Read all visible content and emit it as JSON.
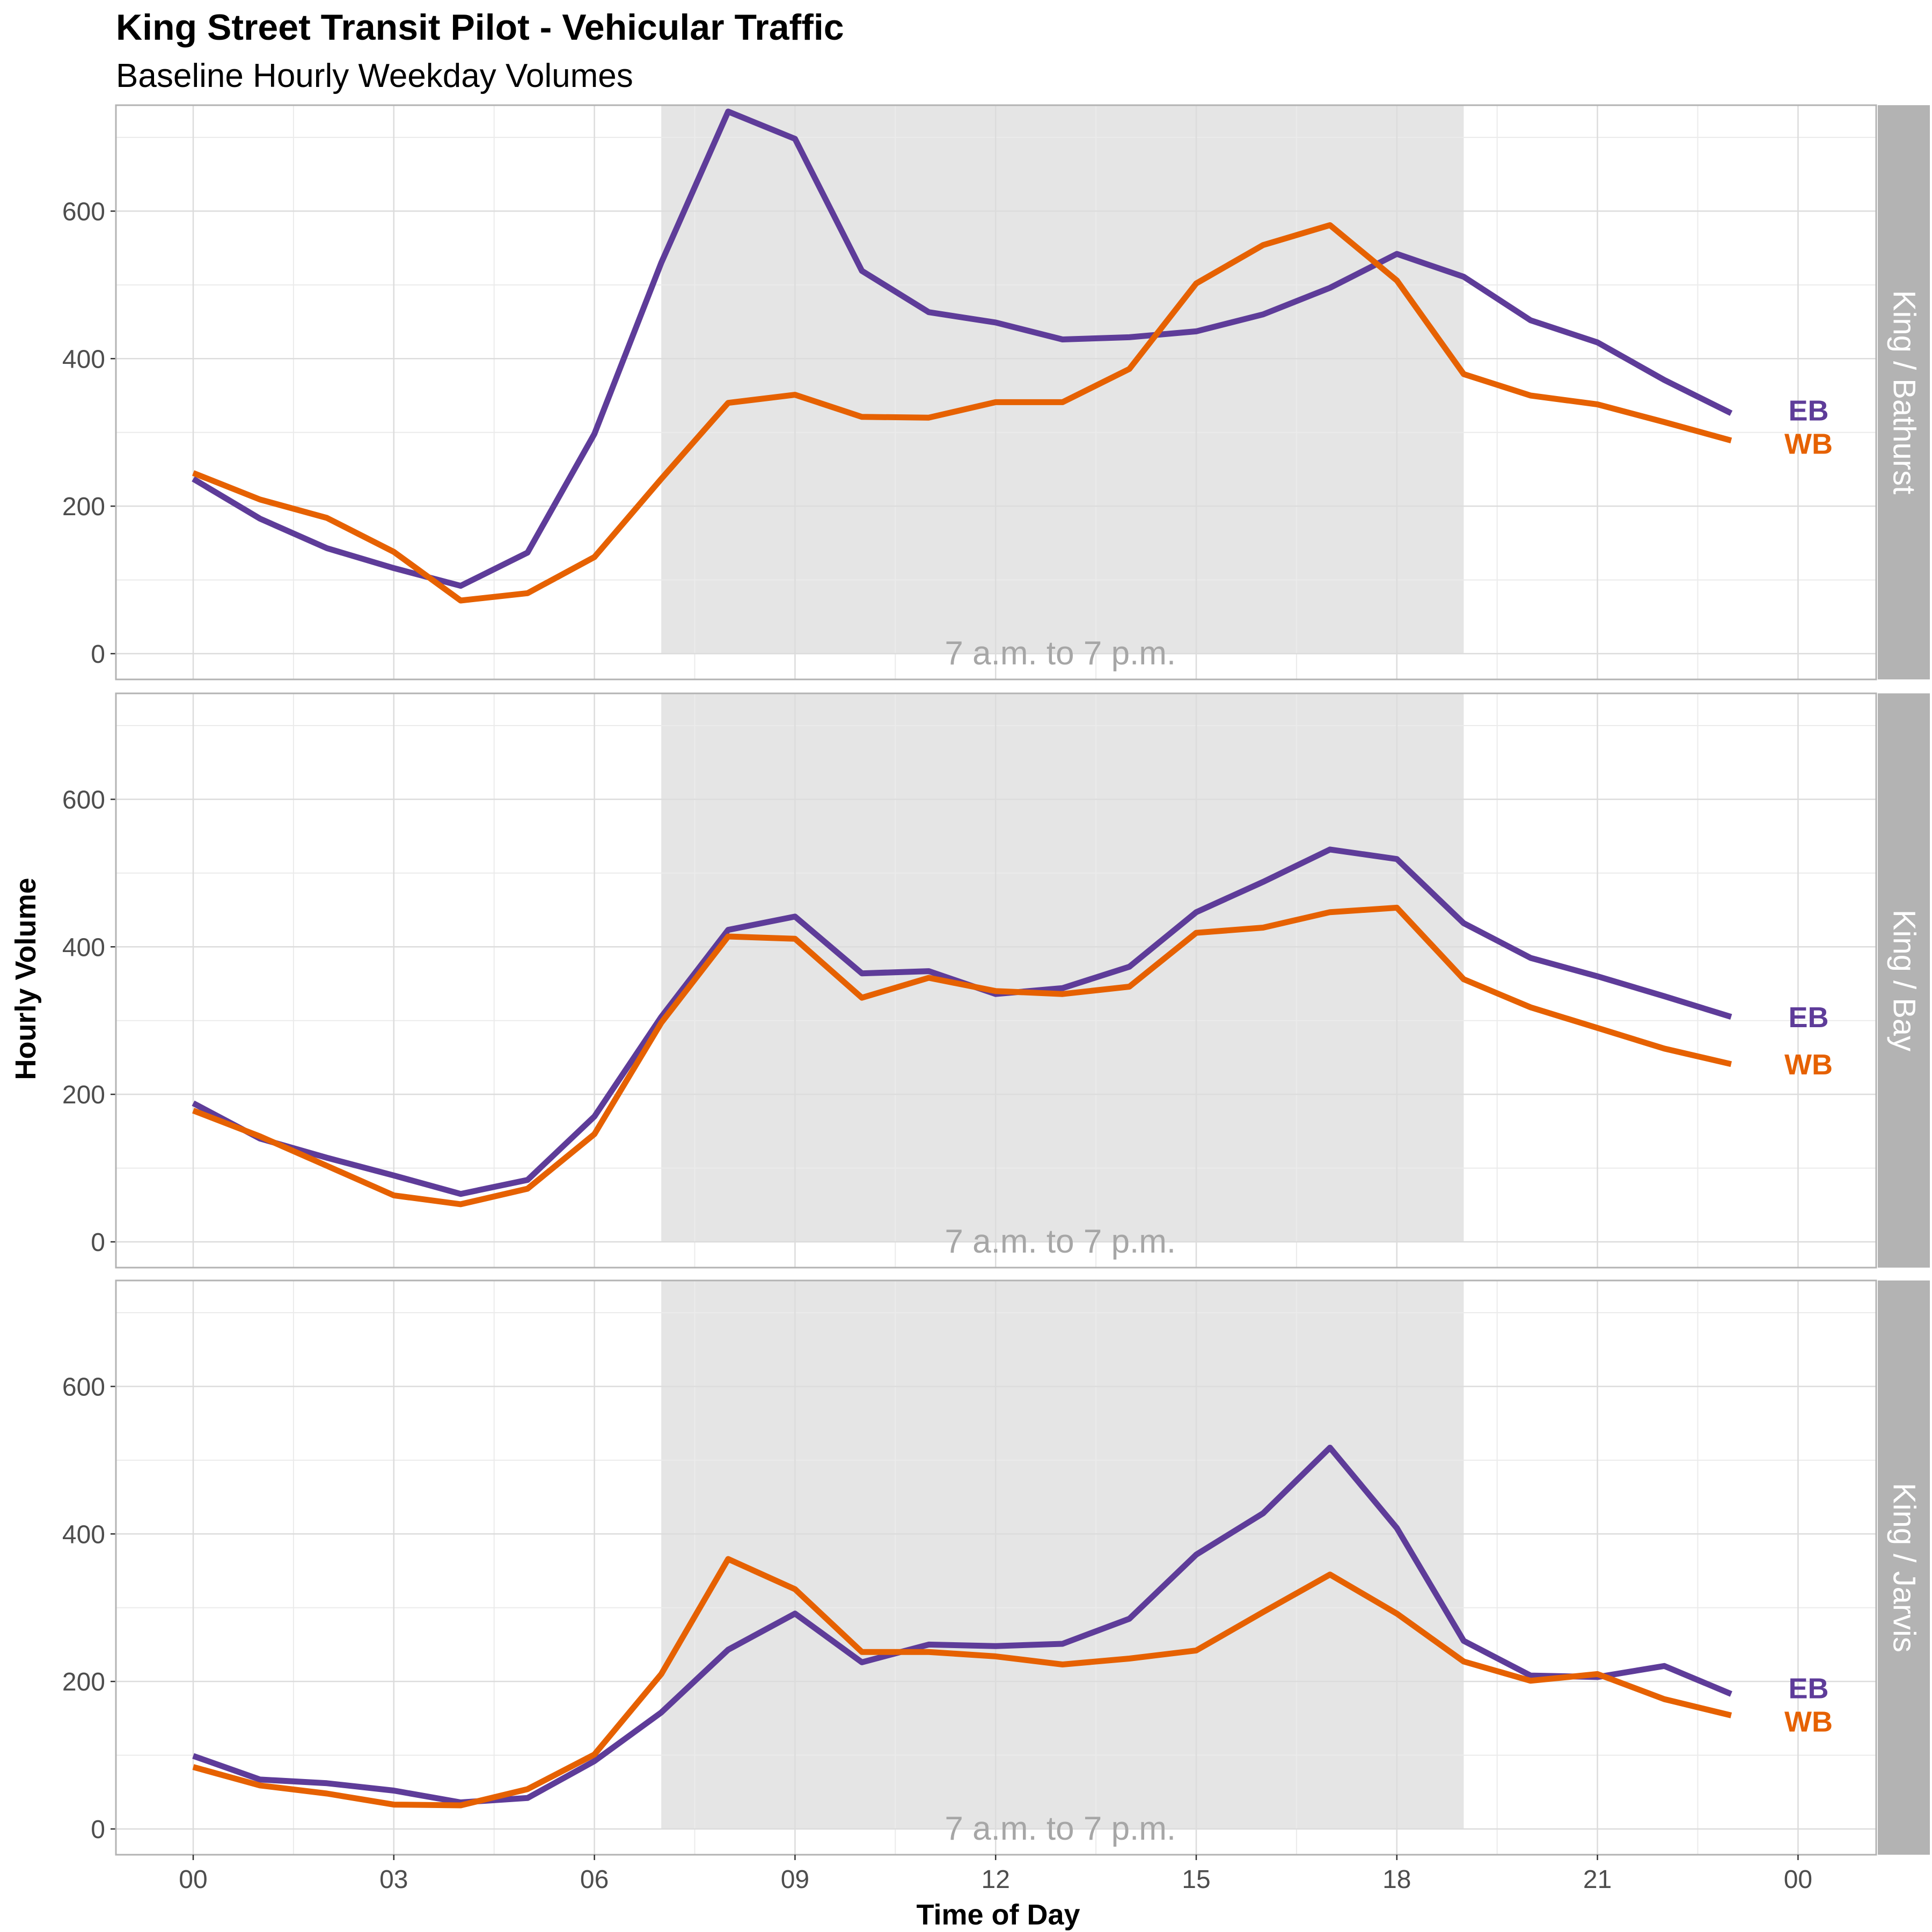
{
  "title": "King Street Transit Pilot - Vehicular Traffic",
  "subtitle": "Baseline Hourly Weekday Volumes",
  "chart_data": {
    "type": "line",
    "title": "King Street Transit Pilot - Vehicular Traffic",
    "subtitle": "Baseline Hourly Weekday Volumes",
    "xlabel": "Time of Day",
    "ylabel": "Hourly Volume",
    "x_ticks": [
      "00",
      "03",
      "06",
      "09",
      "12",
      "15",
      "18",
      "21",
      "00"
    ],
    "y_ticks": [
      "0",
      "200",
      "400",
      "600"
    ],
    "ylim": [
      0,
      740
    ],
    "x_hours": [
      0,
      1,
      2,
      3,
      4,
      5,
      6,
      7,
      8,
      9,
      10,
      11,
      12,
      13,
      14,
      15,
      16,
      17,
      18,
      19,
      20,
      21,
      22,
      23
    ],
    "grid": true,
    "highlight_band": {
      "from_hour": 7,
      "to_hour": 19,
      "label": "7 a.m. to 7 p.m.",
      "color": "#e5e5e5"
    },
    "colors": {
      "EB": "#5e3c99",
      "WB": "#e66101"
    },
    "panels": [
      {
        "name": "King / Bathurst",
        "series": [
          {
            "name": "EB",
            "values": [
              237,
              183,
              143,
              116,
              92,
              137,
              298,
              530,
              735,
              698,
              519,
              463,
              449,
              426,
              429,
              437,
              460,
              496,
              542,
              511,
              452,
              422,
              371,
              326
            ]
          },
          {
            "name": "WB",
            "values": [
              245,
              209,
              184,
              138,
              72,
              82,
              131,
              237,
              340,
              351,
              321,
              320,
              341,
              341,
              386,
              502,
              554,
              581,
              506,
              379,
              350,
              338,
              314,
              289
            ]
          }
        ]
      },
      {
        "name": "King / Bay",
        "series": [
          {
            "name": "EB",
            "values": [
              188,
              140,
              114,
              90,
              65,
              84,
              170,
              305,
              423,
              441,
              364,
              367,
              336,
              344,
              373,
              447,
              488,
              532,
              519,
              432,
              385,
              360,
              333,
              305
            ]
          },
          {
            "name": "WB",
            "values": [
              178,
              143,
              103,
              63,
              51,
              72,
              146,
              297,
              414,
              411,
              331,
              358,
              340,
              336,
              346,
              419,
              426,
              447,
              453,
              356,
              318,
              290,
              262,
              241
            ]
          }
        ]
      },
      {
        "name": "King / Jarvis",
        "series": [
          {
            "name": "EB",
            "values": [
              99,
              67,
              62,
              52,
              36,
              42,
              92,
              158,
              243,
              292,
              226,
              250,
              248,
              251,
              285,
              372,
              428,
              517,
              408,
              255,
              208,
              206,
              221,
              183
            ]
          },
          {
            "name": "WB",
            "values": [
              84,
              59,
              48,
              33,
              32,
              54,
              101,
              210,
              366,
              325,
              240,
              240,
              234,
              223,
              231,
              242,
              294,
              345,
              292,
              227,
              201,
              210,
              176,
              154
            ]
          }
        ]
      }
    ]
  }
}
